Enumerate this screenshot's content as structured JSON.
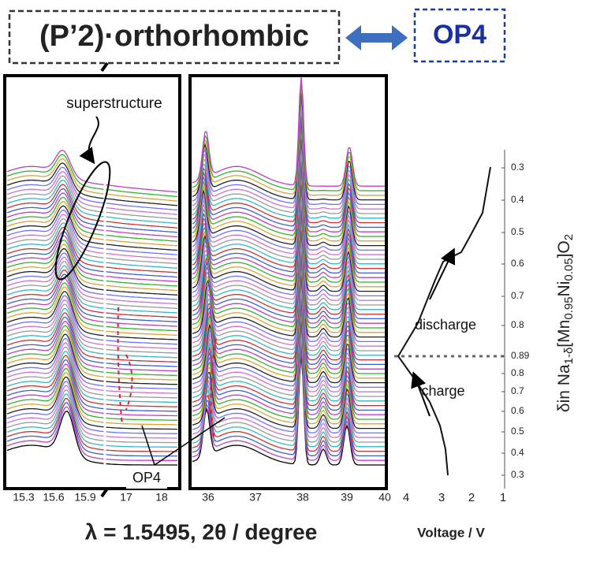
{
  "header": {
    "left_label": "(P’2)·orthorhombic",
    "right_label": "OP4"
  },
  "panels": {
    "left": {
      "annotations": [
        "superstructure",
        "OP4"
      ],
      "xtick_labels": [
        "15.3",
        "15.6",
        "15.9",
        "17",
        "18"
      ]
    },
    "middle": {
      "xtick_labels": [
        "36",
        "37",
        "38",
        "39",
        "40"
      ]
    },
    "right": {
      "annotations": [
        "discharge",
        "charge"
      ],
      "xtick_labels": [
        "4",
        "3",
        "2",
        "1"
      ],
      "ytick_labels": [
        "0.3",
        "0.4",
        "0.5",
        "0.6",
        "0.7",
        "0.8",
        "0.89",
        "0.8",
        "0.7",
        "0.6",
        "0.5",
        "0.4",
        "0.3"
      ],
      "ylabel_parts": [
        "δin Na",
        "1-δ",
        "[Mn",
        "0.95",
        "Ni",
        "0.05",
        "]O",
        "2"
      ],
      "xlabel": "Voltage  /  V"
    }
  },
  "footer": {
    "xlabel": "λ = 1.5495, 2θ  /   degree"
  }
}
